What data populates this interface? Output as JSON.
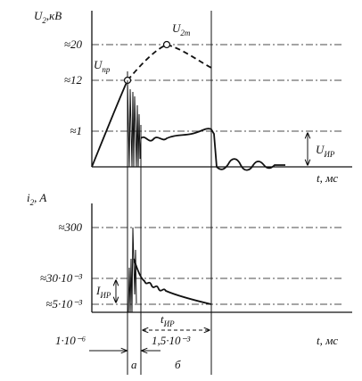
{
  "upper_axis": {
    "label": {
      "symbol": "U",
      "subscript": "2",
      "unit": ",кВ"
    },
    "ticks": [
      "≈20",
      "≈12",
      "≈1"
    ],
    "x_label": "t, мс"
  },
  "annotations": {
    "u_max": {
      "symbol": "U",
      "subscript": "2m"
    },
    "u_pr": {
      "symbol": "U",
      "subscript": "пр"
    },
    "u_ir": {
      "symbol": "U",
      "subscript": "ИР"
    }
  },
  "lower_axis": {
    "label": {
      "symbol": "i",
      "subscript": "2",
      "unit": ", A"
    },
    "ticks": [
      "≈300",
      "≈30·10⁻³",
      "≈5·10⁻³"
    ],
    "x_label": "t, мс"
  },
  "i_ir": {
    "symbol": "I",
    "subscript": "ИР"
  },
  "t_ir": {
    "symbol": "t",
    "subscript": "ИР"
  },
  "intervals": {
    "spark_start": "1·10⁻⁶",
    "arc": "1,5·10⁻³"
  },
  "phases": [
    "а",
    "б"
  ]
}
